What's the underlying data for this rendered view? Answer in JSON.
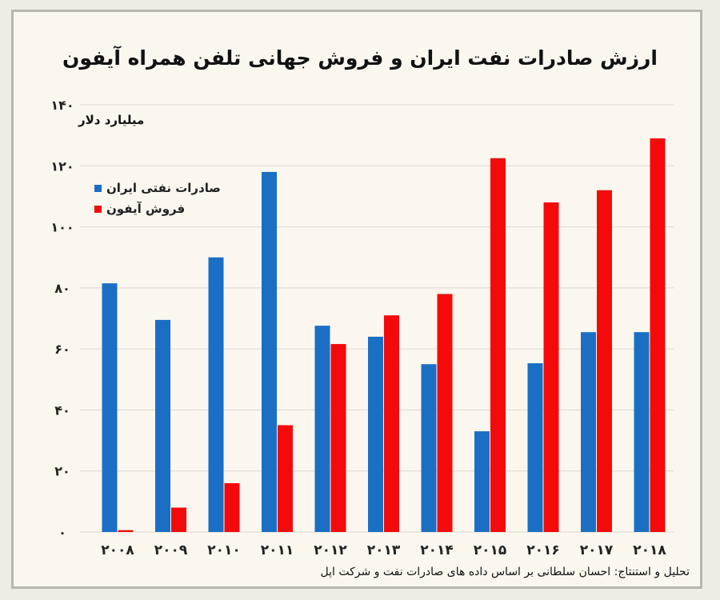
{
  "chart_data": {
    "type": "bar",
    "title": "ارزش صادرات نفت ایران و فروش جهانی تلفن همراه آیفون",
    "ylabel": "میلیارد دلار",
    "xlabel": "",
    "categories": [
      "۲۰۰۸",
      "۲۰۰۹",
      "۲۰۱۰",
      "۲۰۱۱",
      "۲۰۱۲",
      "۲۰۱۳",
      "۲۰۱۴",
      "۲۰۱۵",
      "۲۰۱۶",
      "۲۰۱۷",
      "۲۰۱۸"
    ],
    "series": [
      {
        "name": "صادرات نفتی ایران",
        "color": "#1a6fc4",
        "values": [
          81.5,
          69.5,
          90,
          118,
          67.6,
          64,
          55,
          33,
          55.3,
          65.5,
          65.5
        ]
      },
      {
        "name": "فروش آیفون",
        "color": "#f40a0a",
        "values": [
          0.6,
          8,
          16,
          35,
          61.6,
          71,
          78,
          122.5,
          108,
          112,
          129
        ]
      }
    ],
    "ylim": [
      0,
      140
    ],
    "yticks": [
      0,
      20,
      40,
      60,
      80,
      100,
      120,
      140
    ],
    "ytick_labels": [
      "۰",
      "۲۰",
      "۴۰",
      "۶۰",
      "۸۰",
      "۱۰۰",
      "۱۲۰",
      "۱۴۰"
    ],
    "grid": true,
    "legend_position": "top-left",
    "source": "تحلیل و استنتاج: احسان سلطانی بر اساس داده های صادرات نفت و شرکت اپل"
  }
}
